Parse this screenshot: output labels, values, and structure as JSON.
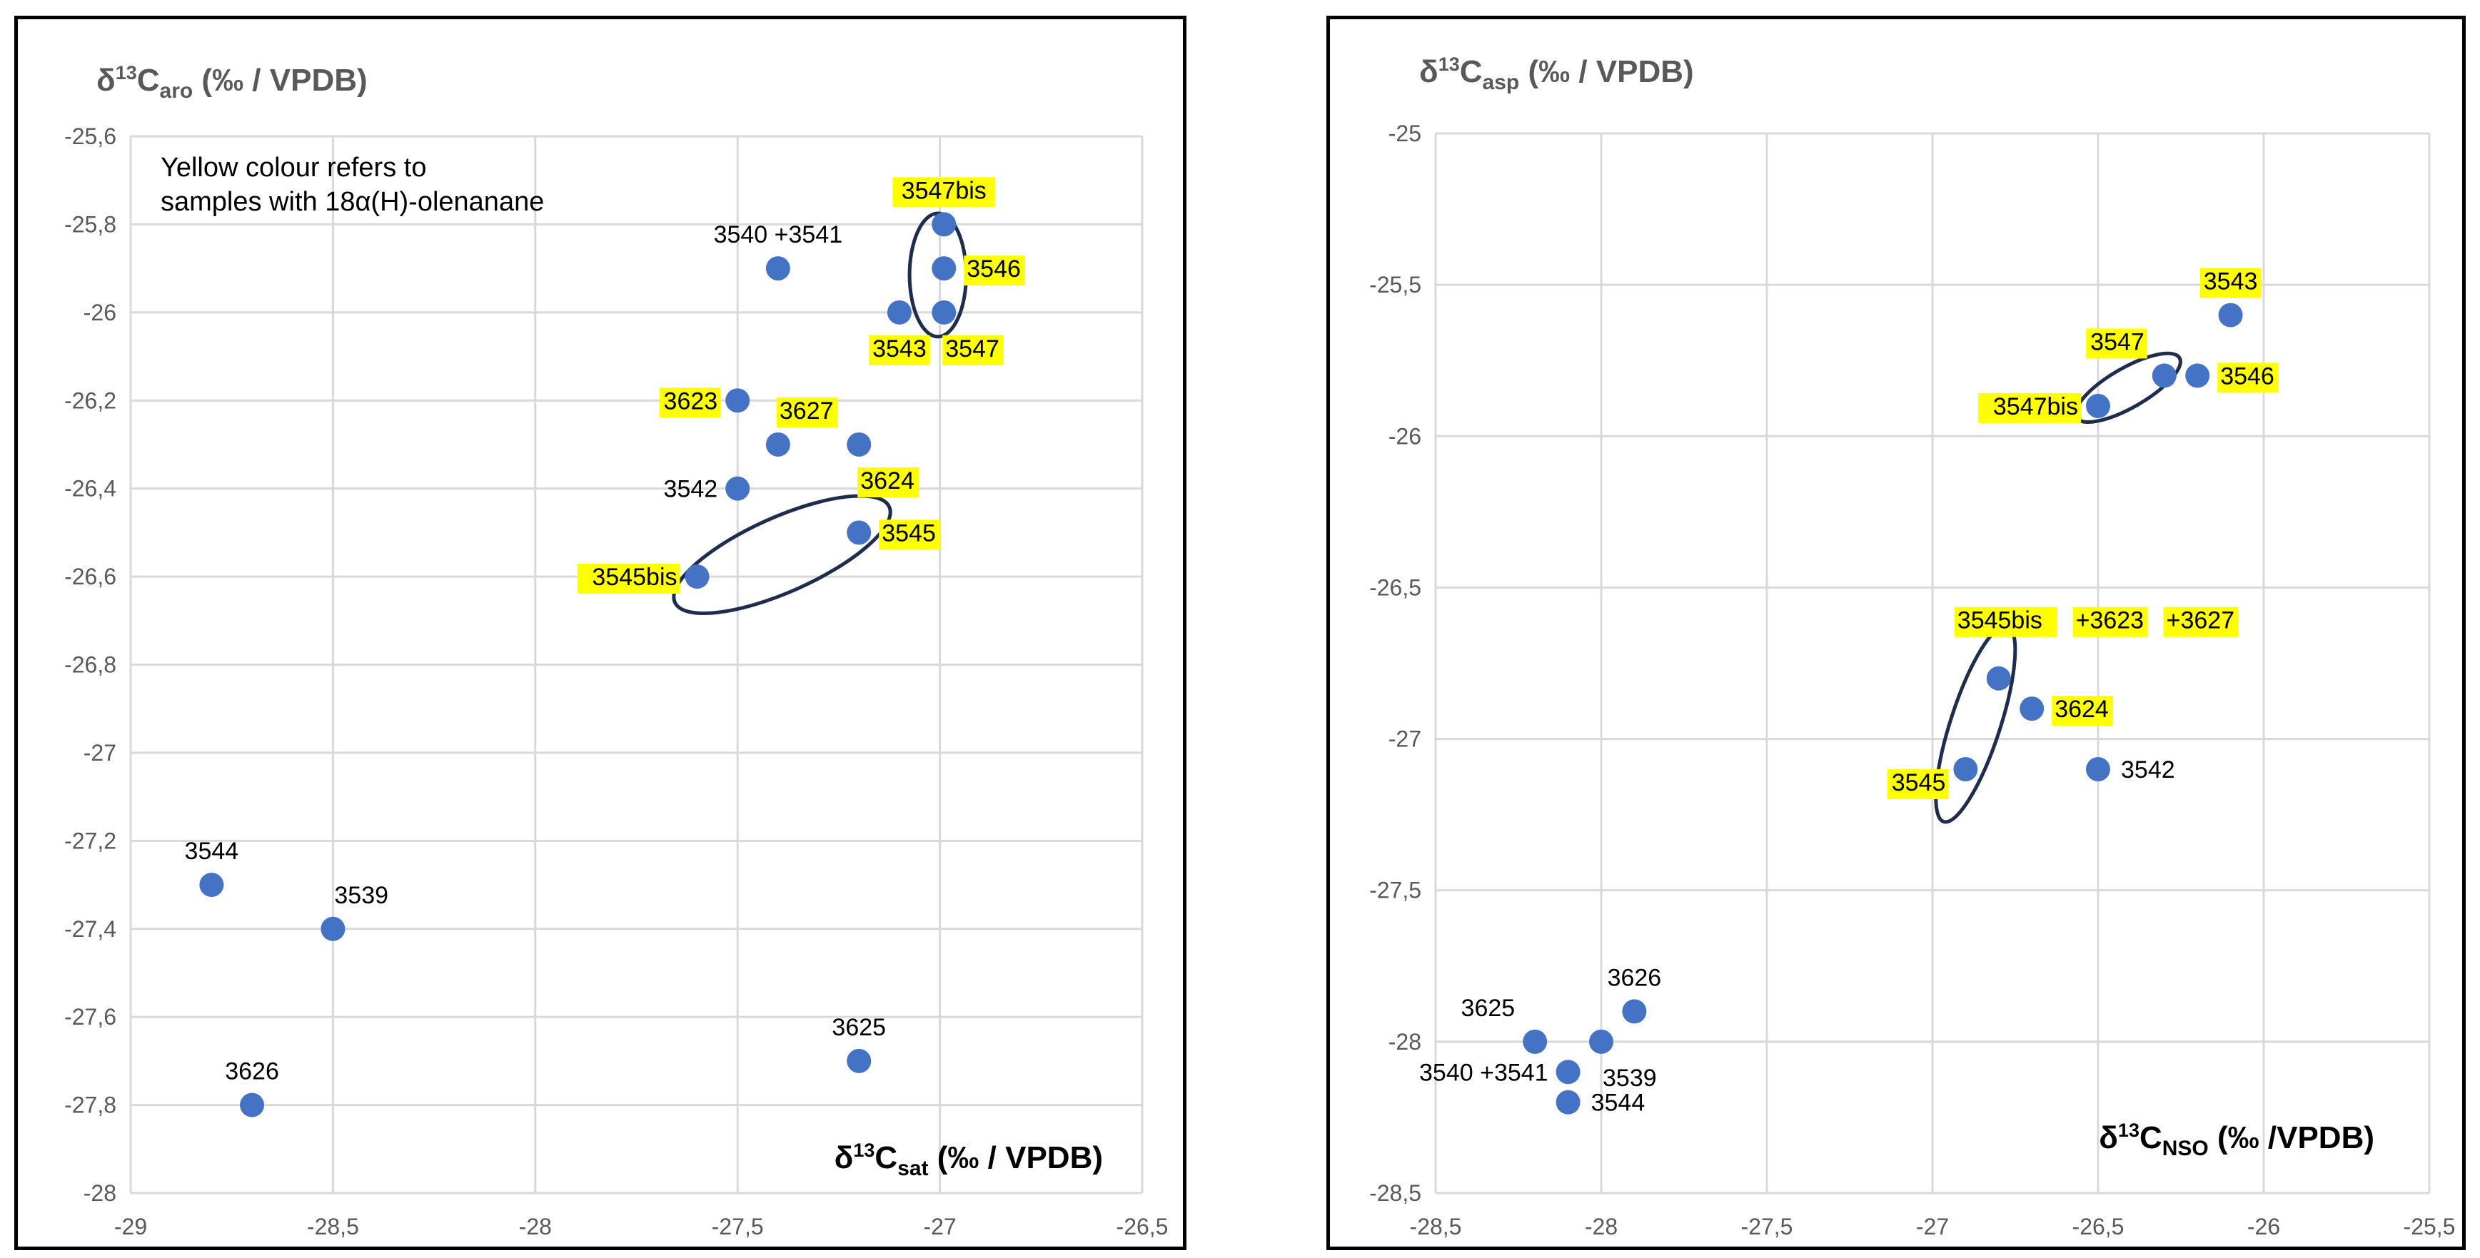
{
  "chart_data": [
    {
      "type": "scatter",
      "title": "",
      "ylabel": {
        "base": "δ",
        "sup": "13",
        "main": "C",
        "sub": "aro",
        "unit": " (‰ / VPDB)"
      },
      "xlabel": {
        "base": "δ",
        "sup": "13",
        "main": "C",
        "sub": "sat",
        "unit": " (‰ / VPDB)"
      },
      "xlim": [
        -29,
        -26.5
      ],
      "ylim": [
        -28,
        -25.6
      ],
      "xticks": [
        -29,
        -28.5,
        -28,
        -27.5,
        -27,
        -26.5
      ],
      "yticks": [
        -28,
        -27.8,
        -27.6,
        -27.4,
        -27.2,
        -27,
        -26.8,
        -26.6,
        -26.4,
        -26.2,
        -26,
        -25.8,
        -25.6
      ],
      "xtick_labels": [
        "-29",
        "-28,5",
        "-28",
        "-27,5",
        "-27",
        "-26,5"
      ],
      "ytick_labels": [
        "-28",
        "-27,8",
        "-27,6",
        "-27,4",
        "-27,2",
        "-27",
        "-26,8",
        "-26,6",
        "-26,4",
        "-26,2",
        "-26",
        "-25,8",
        "-25,6"
      ],
      "annotation": [
        "Yellow colour refers to",
        "samples with 18α(H)-olenanane"
      ],
      "highlight_color": "#ffff00",
      "marker_color": "#4472c4",
      "points": [
        {
          "x": -26.99,
          "y": -25.8,
          "label": "3547bis",
          "hl": true,
          "pos": "above"
        },
        {
          "x": -26.99,
          "y": -25.9,
          "label": "3546",
          "hl": true,
          "pos": "right"
        },
        {
          "x": -27.4,
          "y": -25.9,
          "label": "3540 +3541",
          "hl": false,
          "pos": "above"
        },
        {
          "x": -27.1,
          "y": -26.0,
          "label": "3543",
          "hl": true,
          "pos": "below"
        },
        {
          "x": -26.99,
          "y": -26.0,
          "label": "3547",
          "hl": true,
          "pos": "below-right"
        },
        {
          "x": -27.5,
          "y": -26.2,
          "label": "3623",
          "hl": true,
          "pos": "left"
        },
        {
          "x": -27.4,
          "y": -26.3,
          "label": "3627",
          "hl": true,
          "pos": "above-right"
        },
        {
          "x": -27.2,
          "y": -26.3,
          "label": "3624",
          "hl": true,
          "pos": "below-right"
        },
        {
          "x": -27.5,
          "y": -26.4,
          "label": "3542",
          "hl": false,
          "pos": "left"
        },
        {
          "x": -27.2,
          "y": -26.5,
          "label": "3545",
          "hl": true,
          "pos": "right"
        },
        {
          "x": -27.6,
          "y": -26.6,
          "label": "3545bis",
          "hl": true,
          "pos": "left"
        },
        {
          "x": -28.8,
          "y": -27.3,
          "label": "3544",
          "hl": false,
          "pos": "above"
        },
        {
          "x": -28.5,
          "y": -27.4,
          "label": "3539",
          "hl": false,
          "pos": "above-right"
        },
        {
          "x": -27.2,
          "y": -27.7,
          "label": "3625",
          "hl": false,
          "pos": "above"
        },
        {
          "x": -28.7,
          "y": -27.8,
          "label": "3626",
          "hl": false,
          "pos": "above"
        }
      ],
      "ellipses": [
        {
          "cx": -27.005,
          "cy": -25.915,
          "rx": 0.07,
          "ry": 0.14,
          "angle": 0
        },
        {
          "cx": -27.39,
          "cy": -26.55,
          "rx": 0.29,
          "ry": 0.085,
          "angle": -24
        }
      ]
    },
    {
      "type": "scatter",
      "title": "",
      "ylabel": {
        "base": "δ",
        "sup": "13",
        "main": "C",
        "sub": "asp",
        "unit": " (‰ / VPDB)"
      },
      "xlabel": {
        "base": "δ",
        "sup": "13",
        "main": "C",
        "sub": "NSO",
        "unit": " (‰ /VPDB)"
      },
      "xlim": [
        -28.5,
        -25.5
      ],
      "ylim": [
        -28.5,
        -25
      ],
      "xticks": [
        -28.5,
        -28,
        -27.5,
        -27,
        -26.5,
        -26,
        -25.5
      ],
      "yticks": [
        -28.5,
        -28,
        -27.5,
        -27,
        -26.5,
        -26,
        -25.5,
        -25
      ],
      "xtick_labels": [
        "-28,5",
        "-28",
        "-27,5",
        "-27",
        "-26,5",
        "-26",
        "-25,5"
      ],
      "ytick_labels": [
        "-28,5",
        "-28",
        "-27,5",
        "-27",
        "-26,5",
        "-26",
        "-25,5",
        "-25"
      ],
      "highlight_color": "#ffff00",
      "marker_color": "#4472c4",
      "points": [
        {
          "x": -26.1,
          "y": -25.6,
          "label": "3543",
          "hl": true,
          "pos": "above"
        },
        {
          "x": -26.3,
          "y": -25.8,
          "label": "3547",
          "hl": true,
          "pos": "above-left"
        },
        {
          "x": -26.2,
          "y": -25.8,
          "label": "3546",
          "hl": true,
          "pos": "right"
        },
        {
          "x": -26.5,
          "y": -25.9,
          "label": "3547bis",
          "hl": true,
          "pos": "left"
        },
        {
          "x": -26.8,
          "y": -26.8,
          "label": "3545bis +3623 +3627",
          "hl": true,
          "pos": "group"
        },
        {
          "x": -26.7,
          "y": -26.9,
          "label": "3624",
          "hl": true,
          "pos": "right"
        },
        {
          "x": -26.9,
          "y": -27.1,
          "label": "3545",
          "hl": true,
          "pos": "below-left"
        },
        {
          "x": -26.5,
          "y": -27.1,
          "label": "3542",
          "hl": false,
          "pos": "right"
        },
        {
          "x": -27.9,
          "y": -27.9,
          "label": "3626",
          "hl": false,
          "pos": "above"
        },
        {
          "x": -28.2,
          "y": -28.0,
          "label": "3625",
          "hl": false,
          "pos": "above-left"
        },
        {
          "x": -28.0,
          "y": -28.0,
          "label": "3539",
          "hl": false,
          "pos": "below-right"
        },
        {
          "x": -28.1,
          "y": -28.1,
          "label": "3540 +3541",
          "hl": false,
          "pos": "left"
        },
        {
          "x": -28.1,
          "y": -28.2,
          "label": "3544",
          "hl": false,
          "pos": "right"
        }
      ],
      "group_labels": [
        "3545bis",
        "+3623",
        "+3627"
      ],
      "ellipses": [
        {
          "cx": -26.41,
          "cy": -25.84,
          "rx": 0.18,
          "ry": 0.065,
          "angle": -30
        },
        {
          "cx": -26.87,
          "cy": -26.95,
          "rx": 0.075,
          "ry": 0.34,
          "angle": 18
        }
      ]
    }
  ]
}
